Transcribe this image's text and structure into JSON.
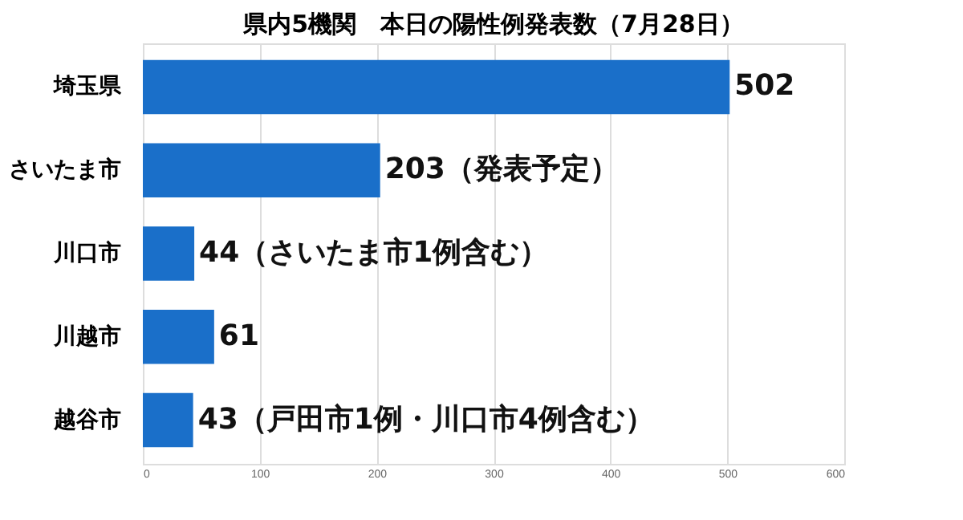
{
  "chart_data": {
    "type": "bar",
    "orientation": "horizontal",
    "title": "県内5機関　本日の陽性例発表数（7月28日）",
    "categories": [
      "埼玉県",
      "さいたま市",
      "川口市",
      "川越市",
      "越谷市"
    ],
    "values": [
      502,
      203,
      44,
      61,
      43
    ],
    "value_labels": [
      "502",
      "203（発表予定）",
      "44（さいたま市1例含む）",
      "61",
      "43（戸田市1例・川口市4例含む）"
    ],
    "color": "#1a6fc9",
    "xlim": [
      0,
      600
    ],
    "xticks": [
      0,
      100,
      200,
      300,
      400,
      500,
      600
    ],
    "grid": "x"
  }
}
